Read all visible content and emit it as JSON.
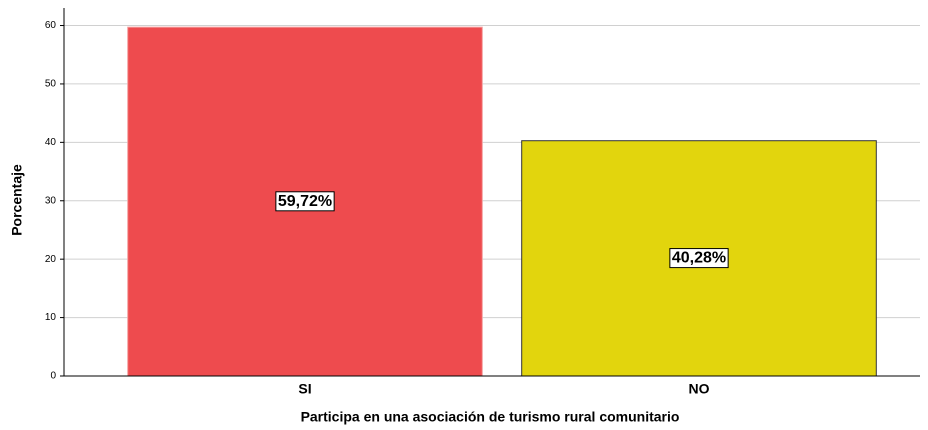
{
  "chart_data": {
    "type": "bar",
    "x_label": "Participa en una asociación de turismo rural comunitario",
    "y_label": "Porcentaje",
    "categories": [
      "SI",
      "NO"
    ],
    "values": [
      59.72,
      40.28
    ],
    "value_labels": [
      "59,72%",
      "40,28%"
    ],
    "colors": [
      "#ee4b4e",
      "#e2d50d"
    ],
    "ylim": [
      0,
      63
    ],
    "yticks": [
      0,
      10,
      20,
      30,
      40,
      50,
      60
    ],
    "grid": true
  }
}
